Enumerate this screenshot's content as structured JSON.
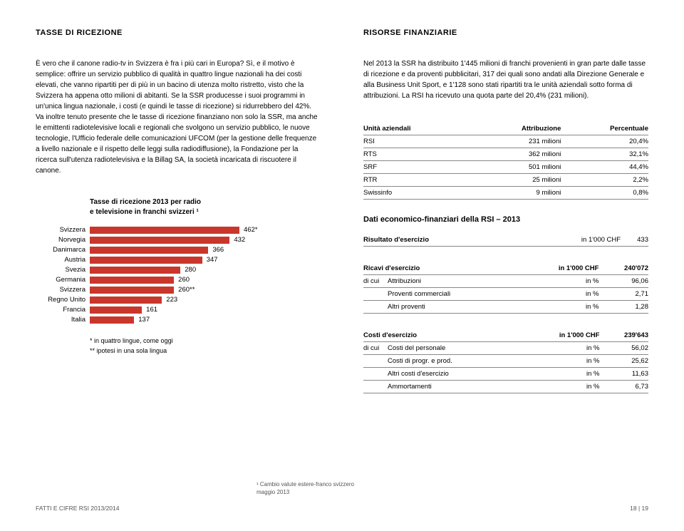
{
  "left": {
    "heading": "TASSE DI RICEZIONE",
    "paragraph": "È vero che il canone radio-tv in Svizzera è fra i più cari in Europa? Sì, e il motivo è semplice: offrire un servizio pubblico di qualità in quattro lingue nazionali ha dei costi elevati, che vanno ripartiti per di più in un bacino di utenza molto ristretto, visto che la Svizzera ha appena otto milioni di abitanti. Se la SSR producesse i suoi programmi in un'unica lingua nazionale, i costi (e quindi le tasse di ricezione) si ridurrebbero del 42%. Va inoltre tenuto presente che le tasse di ricezione finanziano non solo la SSR, ma anche le emittenti radiotelevisive locali e regionali che svolgono un servizio pubblico, le nuove tecnologie, l'Ufficio federale delle comunicazioni UFCOM (per la gestione delle frequenze a livello nazionale e il rispetto delle leggi sulla radiodiffusione), la Fondazione per la ricerca sull'utenza radiotelevisiva e la Billag SA, la società incaricata di riscuotere il canone.",
    "chart": {
      "title_line1": "Tasse di ricezione 2013 per radio",
      "title_line2": "e televisione in franchi svizzeri ¹",
      "max": 462,
      "bar_color": "#c9372c",
      "rows": [
        {
          "label": "Svizzera",
          "value": 462,
          "display": "462*"
        },
        {
          "label": "Norvegia",
          "value": 432,
          "display": "432"
        },
        {
          "label": "Danimarca",
          "value": 366,
          "display": "366"
        },
        {
          "label": "Austria",
          "value": 347,
          "display": "347"
        },
        {
          "label": "Svezia",
          "value": 280,
          "display": "280"
        },
        {
          "label": "Germania",
          "value": 260,
          "display": "260"
        },
        {
          "label": "Svizzera",
          "value": 260,
          "display": "260**"
        },
        {
          "label": "Regno Unito",
          "value": 223,
          "display": "223"
        },
        {
          "label": "Francia",
          "value": 161,
          "display": "161"
        },
        {
          "label": "Italia",
          "value": 137,
          "display": "137"
        }
      ],
      "footnote1": "* in quattro lingue, come oggi",
      "footnote2": "** ipotesi in una sola lingua"
    }
  },
  "right": {
    "heading": "RISORSE FINANZIARIE",
    "paragraph": "Nel 2013 la SSR ha distribuito 1'445 milioni di franchi provenienti in gran parte dalle tasse di ricezione e da proventi pubblicitari, 317 dei quali sono andati alla Direzione Generale e alla Business Unit Sport, e 1'128 sono stati ripartiti tra le unità aziendali sotto forma di attribuzioni. La RSI ha ricevuto una quota parte del 20,4% (231 milioni).",
    "table1": {
      "headers": [
        "Unità aziendali",
        "Attribuzione",
        "Percentuale"
      ],
      "rows": [
        [
          "RSI",
          "231 milioni",
          "20,4%"
        ],
        [
          "RTS",
          "362 milioni",
          "32,1%"
        ],
        [
          "SRF",
          "501 milioni",
          "44,4%"
        ],
        [
          "RTR",
          "25 milioni",
          "2,2%"
        ],
        [
          "Swissinfo",
          "9 milioni",
          "0,8%"
        ]
      ]
    },
    "section2_title": "Dati economico-finanziari della RSI – 2013",
    "table2": {
      "row": [
        "Risultato d'esercizio",
        "in 1'000 CHF",
        "433"
      ]
    },
    "table3": {
      "header": [
        "Ricavi d'esercizio",
        "in 1'000 CHF",
        "240'072"
      ],
      "rows": [
        [
          "di cui",
          "Attribuzioni",
          "in %",
          "96,06"
        ],
        [
          "",
          "Proventi commerciali",
          "in %",
          "2,71"
        ],
        [
          "",
          "Altri proventi",
          "in %",
          "1,28"
        ]
      ]
    },
    "table4": {
      "header": [
        "Costi d'esercizio",
        "in 1'000 CHF",
        "239'643"
      ],
      "rows": [
        [
          "di cui",
          "Costi del personale",
          "in %",
          "56,02"
        ],
        [
          "",
          "Costi di progr. e prod.",
          "in %",
          "25,62"
        ],
        [
          "",
          "Altri costi d'esercizio",
          "in %",
          "11,63"
        ],
        [
          "",
          "Ammortamenti",
          "in %",
          "6,73"
        ]
      ]
    }
  },
  "footnote": {
    "line1": "¹ Cambio valute estere-franco svizzero",
    "line2": "maggio 2013"
  },
  "footer": {
    "left": "FATTI E CIFRE RSI 2013/2014",
    "right": "18 | 19"
  }
}
